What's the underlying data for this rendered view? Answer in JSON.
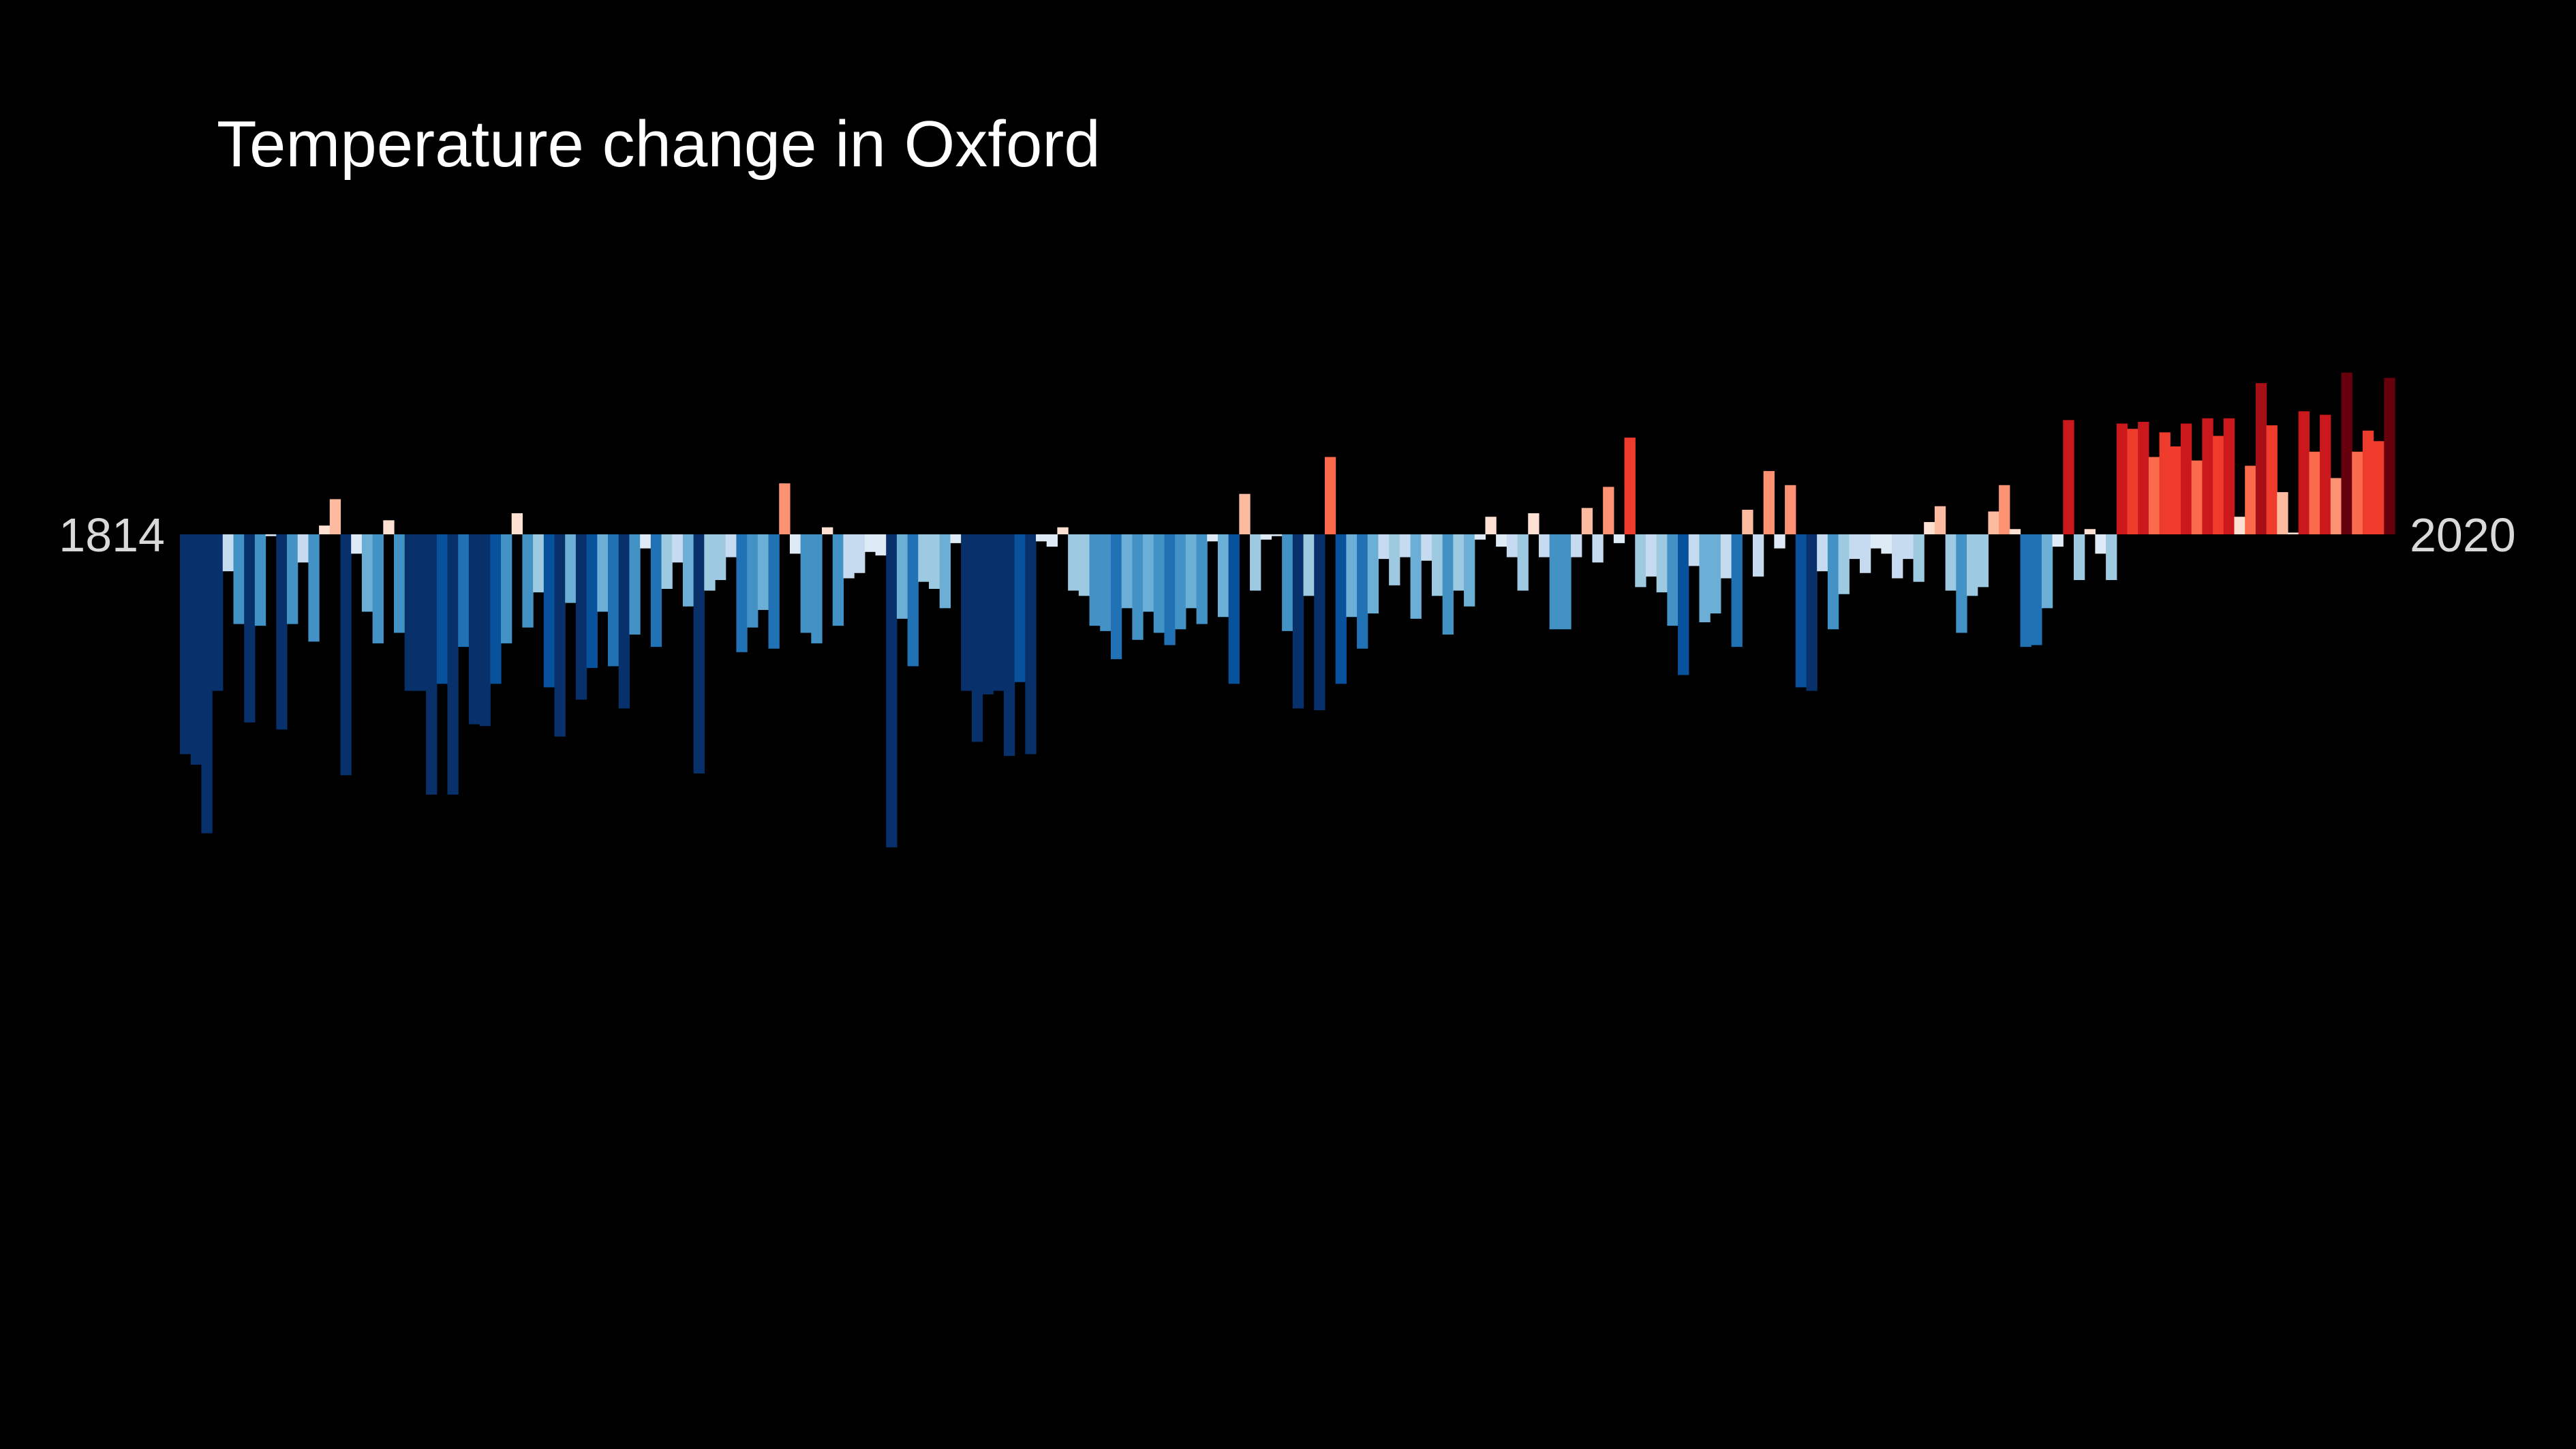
{
  "chart_data": {
    "type": "bar",
    "title": "Temperature change in Oxford",
    "xlabel": "",
    "ylabel": "",
    "start_label": "1814",
    "end_label": "2020",
    "x": [
      1814,
      1815,
      1816,
      1817,
      1818,
      1819,
      1820,
      1821,
      1822,
      1823,
      1824,
      1825,
      1826,
      1827,
      1828,
      1829,
      1830,
      1831,
      1832,
      1833,
      1834,
      1835,
      1836,
      1837,
      1838,
      1839,
      1840,
      1841,
      1842,
      1843,
      1844,
      1845,
      1846,
      1847,
      1848,
      1849,
      1850,
      1851,
      1852,
      1853,
      1854,
      1855,
      1856,
      1857,
      1858,
      1859,
      1860,
      1861,
      1862,
      1863,
      1864,
      1865,
      1866,
      1867,
      1868,
      1869,
      1870,
      1871,
      1872,
      1873,
      1874,
      1875,
      1876,
      1877,
      1878,
      1879,
      1880,
      1881,
      1882,
      1883,
      1884,
      1885,
      1886,
      1887,
      1888,
      1889,
      1890,
      1891,
      1892,
      1893,
      1894,
      1895,
      1896,
      1897,
      1898,
      1899,
      1900,
      1901,
      1902,
      1903,
      1904,
      1905,
      1906,
      1907,
      1908,
      1909,
      1910,
      1911,
      1912,
      1913,
      1914,
      1915,
      1916,
      1917,
      1918,
      1919,
      1920,
      1921,
      1922,
      1923,
      1924,
      1925,
      1926,
      1927,
      1928,
      1929,
      1930,
      1931,
      1932,
      1933,
      1934,
      1935,
      1936,
      1937,
      1938,
      1939,
      1940,
      1941,
      1942,
      1943,
      1944,
      1945,
      1946,
      1947,
      1948,
      1949,
      1950,
      1951,
      1952,
      1953,
      1954,
      1955,
      1956,
      1957,
      1958,
      1959,
      1960,
      1961,
      1962,
      1963,
      1964,
      1965,
      1966,
      1967,
      1968,
      1969,
      1970,
      1971,
      1972,
      1973,
      1974,
      1975,
      1976,
      1977,
      1978,
      1979,
      1980,
      1981,
      1982,
      1983,
      1984,
      1985,
      1986,
      1987,
      1988,
      1989,
      1990,
      1991,
      1992,
      1993,
      1994,
      1995,
      1996,
      1997,
      1998,
      1999,
      2000,
      2001,
      2002,
      2003,
      2004,
      2005,
      2006,
      2007,
      2008,
      2009,
      2010,
      2011,
      2012,
      2013,
      2014,
      2015,
      2016,
      2017,
      2018,
      2019,
      2020
    ],
    "values": [
      -1.25,
      -1.31,
      -1.7,
      -0.89,
      -0.21,
      -0.51,
      -1.07,
      -0.52,
      -0.01,
      -1.11,
      -0.51,
      -0.16,
      -0.61,
      0.05,
      0.2,
      -1.37,
      -0.11,
      -0.44,
      -0.62,
      0.08,
      -0.56,
      -0.89,
      -0.89,
      -1.48,
      -0.85,
      -1.48,
      -0.64,
      -1.08,
      -1.09,
      -0.85,
      -0.62,
      0.12,
      -0.53,
      -0.33,
      -0.87,
      -1.15,
      -0.39,
      -0.94,
      -0.76,
      -0.44,
      -0.75,
      -0.99,
      -0.57,
      -0.08,
      -0.64,
      -0.31,
      -0.16,
      -0.41,
      -1.36,
      -0.32,
      -0.26,
      -0.13,
      -0.67,
      -0.53,
      -0.43,
      -0.65,
      0.29,
      -0.11,
      -0.56,
      -0.62,
      0.04,
      -0.52,
      -0.25,
      -0.22,
      -0.1,
      -0.12,
      -1.78,
      -0.48,
      -0.75,
      -0.27,
      -0.31,
      -0.42,
      -0.05,
      -0.89,
      -1.18,
      -0.91,
      -0.89,
      -1.26,
      -0.84,
      -1.25,
      -0.04,
      -0.07,
      0.04,
      -0.32,
      -0.35,
      -0.52,
      -0.55,
      -0.71,
      -0.42,
      -0.6,
      -0.44,
      -0.56,
      -0.63,
      -0.54,
      -0.42,
      -0.51,
      -0.04,
      -0.47,
      -0.85,
      0.23,
      -0.32,
      -0.03,
      -0.01,
      -0.55,
      -0.99,
      -0.35,
      -1.0,
      0.44,
      -0.85,
      -0.47,
      -0.65,
      -0.45,
      -0.14,
      -0.29,
      -0.13,
      -0.48,
      -0.15,
      -0.35,
      -0.57,
      -0.32,
      -0.41,
      -0.03,
      0.1,
      -0.07,
      -0.13,
      -0.32,
      0.12,
      -0.13,
      -0.54,
      -0.54,
      -0.13,
      0.15,
      -0.16,
      0.27,
      -0.05,
      0.55,
      -0.3,
      -0.24,
      -0.33,
      -0.52,
      -0.8,
      -0.18,
      -0.5,
      -0.45,
      -0.25,
      -0.64,
      0.14,
      -0.24,
      0.36,
      -0.08,
      0.28,
      -0.87,
      -0.89,
      -0.21,
      -0.54,
      -0.34,
      -0.14,
      -0.22,
      -0.08,
      -0.11,
      -0.25,
      -0.14,
      -0.27,
      0.07,
      0.16,
      -0.32,
      -0.56,
      -0.35,
      -0.3,
      0.13,
      0.28,
      0.03,
      -0.64,
      -0.63,
      -0.42,
      -0.07,
      0.65,
      -0.26,
      0.03,
      -0.11,
      -0.26,
      0.63,
      0.6,
      0.64,
      0.44,
      0.58,
      0.5,
      0.63,
      0.42,
      0.66,
      0.56,
      0.66,
      0.1,
      0.39,
      0.86,
      0.62,
      0.24,
      0.01,
      0.7,
      0.47,
      0.68,
      0.32,
      0.92,
      0.47,
      0.59,
      0.53,
      0.89
    ],
    "ylim": [
      -2.0,
      1.1
    ],
    "grid": false,
    "legend": "none",
    "colors": {
      "background": "#000000",
      "title": "#ffffff",
      "year_label": "#d9d9d9",
      "scale": [
        "#08306b",
        "#08519c",
        "#2171b5",
        "#4292c6",
        "#6baed6",
        "#9ecae1",
        "#c6dbef",
        "#deebf7",
        "#fee0d2",
        "#fcbba1",
        "#fc9272",
        "#fb6a4a",
        "#ef3b2c",
        "#cb181d",
        "#a50f15",
        "#67000d"
      ]
    }
  }
}
